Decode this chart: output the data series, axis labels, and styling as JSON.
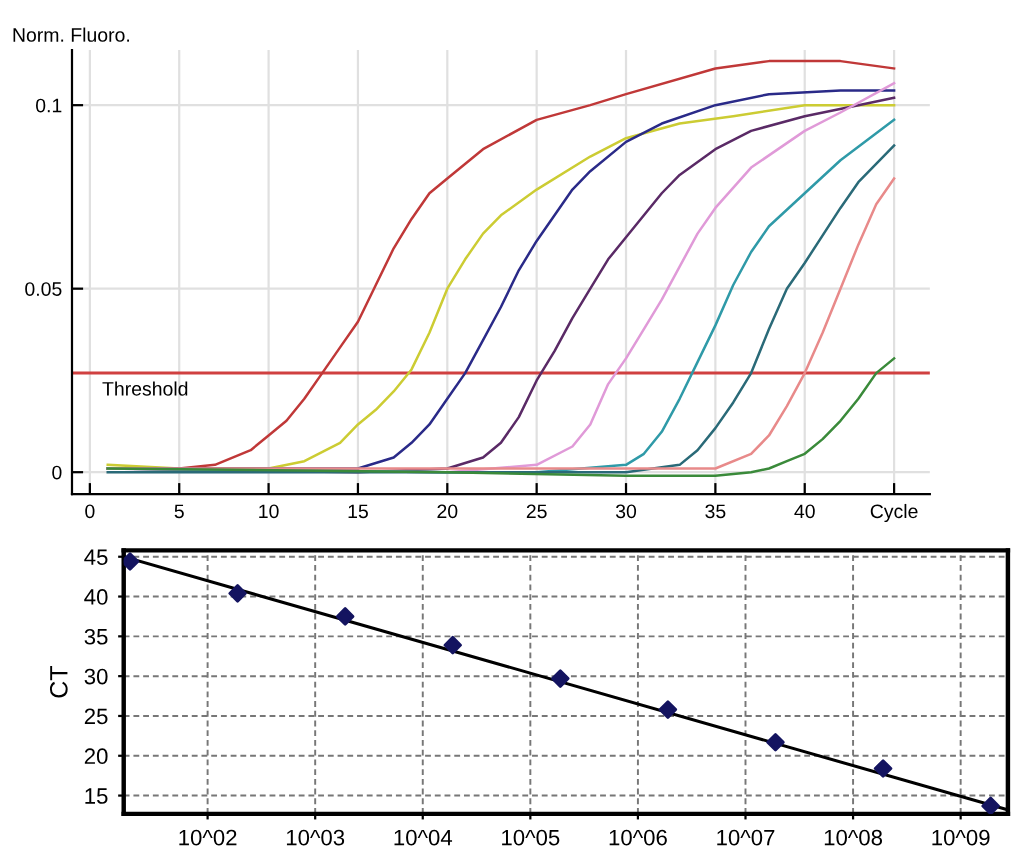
{
  "chart_data": [
    {
      "type": "line",
      "ylabel": "Norm. Fluoro.",
      "xlim": [
        -1,
        47
      ],
      "ylim": [
        -0.006,
        0.115
      ],
      "xticks": [
        0,
        5,
        10,
        15,
        20,
        25,
        30,
        35,
        40,
        {
          "value": 45,
          "label": "Cycle"
        }
      ],
      "yticks": [
        0,
        0.05,
        0.1
      ],
      "grid": true,
      "ref_lines": [
        {
          "axis": "y",
          "value": 0.027,
          "label": "Threshold",
          "color": "#d04040"
        }
      ],
      "series": [
        {
          "color": "#c03838",
          "x": [
            1,
            5,
            7,
            9,
            10,
            11,
            12,
            13,
            14,
            15,
            16,
            17,
            18,
            19,
            20,
            22,
            25,
            28,
            30,
            35,
            38,
            42,
            45
          ],
          "values": [
            0.001,
            0.001,
            0.002,
            0.006,
            0.01,
            0.014,
            0.02,
            0.027,
            0.034,
            0.041,
            0.051,
            0.061,
            0.069,
            0.076,
            0.08,
            0.088,
            0.096,
            0.1,
            0.103,
            0.11,
            0.112,
            0.112,
            0.11
          ]
        },
        {
          "color": "#cccc33",
          "x": [
            1,
            5,
            10,
            12,
            14,
            15,
            16,
            17,
            18,
            19,
            20,
            21,
            22,
            23,
            25,
            28,
            30,
            33,
            36,
            40,
            45
          ],
          "values": [
            0.002,
            0.001,
            0.001,
            0.003,
            0.008,
            0.013,
            0.017,
            0.022,
            0.028,
            0.038,
            0.05,
            0.058,
            0.065,
            0.07,
            0.077,
            0.086,
            0.091,
            0.095,
            0.097,
            0.1,
            0.1
          ]
        },
        {
          "color": "#2a2a88",
          "x": [
            1,
            10,
            15,
            17,
            18,
            19,
            20,
            21,
            22,
            23,
            24,
            25,
            26,
            27,
            28,
            30,
            32,
            35,
            38,
            42,
            45
          ],
          "values": [
            0.001,
            0.001,
            0.001,
            0.004,
            0.008,
            0.013,
            0.02,
            0.027,
            0.036,
            0.045,
            0.055,
            0.063,
            0.07,
            0.077,
            0.082,
            0.09,
            0.095,
            0.1,
            0.103,
            0.104,
            0.104
          ]
        },
        {
          "color": "#5a2a66",
          "x": [
            1,
            15,
            20,
            22,
            23,
            24,
            25,
            26,
            27,
            28,
            29,
            30,
            31,
            32,
            33,
            35,
            37,
            40,
            43,
            45
          ],
          "values": [
            0.001,
            0.0,
            0.001,
            0.004,
            0.008,
            0.015,
            0.025,
            0.033,
            0.042,
            0.05,
            0.058,
            0.064,
            0.07,
            0.076,
            0.081,
            0.088,
            0.093,
            0.097,
            0.1,
            0.102
          ]
        },
        {
          "color": "#e09ad8",
          "x": [
            1,
            20,
            25,
            27,
            28,
            29,
            30,
            31,
            32,
            33,
            34,
            35,
            37,
            40,
            42,
            45
          ],
          "values": [
            0.001,
            0.0,
            0.002,
            0.007,
            0.013,
            0.024,
            0.031,
            0.039,
            0.047,
            0.056,
            0.065,
            0.072,
            0.083,
            0.093,
            0.098,
            0.106
          ]
        },
        {
          "color": "#2f9aa8",
          "x": [
            1,
            20,
            25,
            30,
            31,
            32,
            33,
            34,
            35,
            36,
            37,
            38,
            40,
            42,
            45
          ],
          "values": [
            0.001,
            0.0,
            0.0,
            0.002,
            0.005,
            0.011,
            0.02,
            0.03,
            0.04,
            0.051,
            0.06,
            0.067,
            0.076,
            0.085,
            0.096
          ]
        },
        {
          "color": "#2a6a78",
          "x": [
            1,
            25,
            30,
            33,
            34,
            35,
            36,
            37,
            38,
            39,
            40,
            42,
            43,
            45
          ],
          "values": [
            0.0,
            0.0,
            0.0,
            0.002,
            0.006,
            0.012,
            0.019,
            0.027,
            0.039,
            0.05,
            0.057,
            0.072,
            0.079,
            0.089
          ]
        },
        {
          "color": "#e88a8a",
          "x": [
            1,
            30,
            35,
            37,
            38,
            39,
            40,
            41,
            42,
            43,
            44,
            45
          ],
          "values": [
            0.001,
            0.001,
            0.001,
            0.005,
            0.01,
            0.018,
            0.027,
            0.038,
            0.05,
            0.062,
            0.073,
            0.08
          ]
        },
        {
          "color": "#3a8a3a",
          "x": [
            1,
            20,
            30,
            35,
            37,
            38,
            39,
            40,
            41,
            42,
            43,
            44,
            45
          ],
          "values": [
            0.001,
            0.0,
            -0.001,
            -0.001,
            0.0,
            0.001,
            0.003,
            0.005,
            0.009,
            0.014,
            0.02,
            0.027,
            0.031
          ]
        }
      ]
    },
    {
      "type": "scatter",
      "ylabel": "CT",
      "log": "x",
      "xlim": [
        16.6,
        2750000000.0
      ],
      "ylim": [
        12.7,
        45.8
      ],
      "xticks": [
        {
          "value": 100,
          "label": "10^02"
        },
        {
          "value": 1000,
          "label": "10^03"
        },
        {
          "value": 10000,
          "label": "10^04"
        },
        {
          "value": 100000,
          "label": "10^05"
        },
        {
          "value": 1000000,
          "label": "10^06"
        },
        {
          "value": 10000000,
          "label": "10^07"
        },
        {
          "value": 100000000,
          "label": "10^08"
        },
        {
          "value": 1000000000,
          "label": "10^09"
        }
      ],
      "yticks": [
        15,
        20,
        25,
        30,
        35,
        40,
        45
      ],
      "grid": true,
      "series": [
        {
          "type": "line",
          "color": "#000000",
          "x": [
            16.6,
            2750000000.0
          ],
          "values": [
            45.0,
            13.2
          ]
        },
        {
          "type": "scatter",
          "marker": "diamond",
          "color": "#141460",
          "x": [
            19,
            190,
            1900,
            19000,
            190000,
            1900000,
            19000000,
            190000000,
            1900000000
          ],
          "values": [
            44.4,
            40.4,
            37.5,
            33.9,
            29.7,
            25.8,
            21.7,
            18.4,
            13.7
          ]
        }
      ]
    }
  ]
}
